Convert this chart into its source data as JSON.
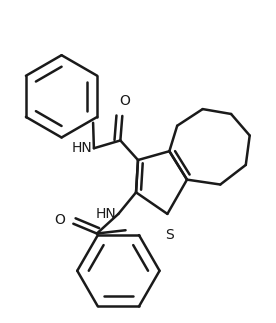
{
  "background_color": "#ffffff",
  "line_color": "#1a1a1a",
  "line_width": 1.8,
  "figure_size": [
    2.76,
    3.23
  ],
  "dpi": 100,
  "xlim": [
    0,
    276
  ],
  "ylim": [
    0,
    323
  ]
}
